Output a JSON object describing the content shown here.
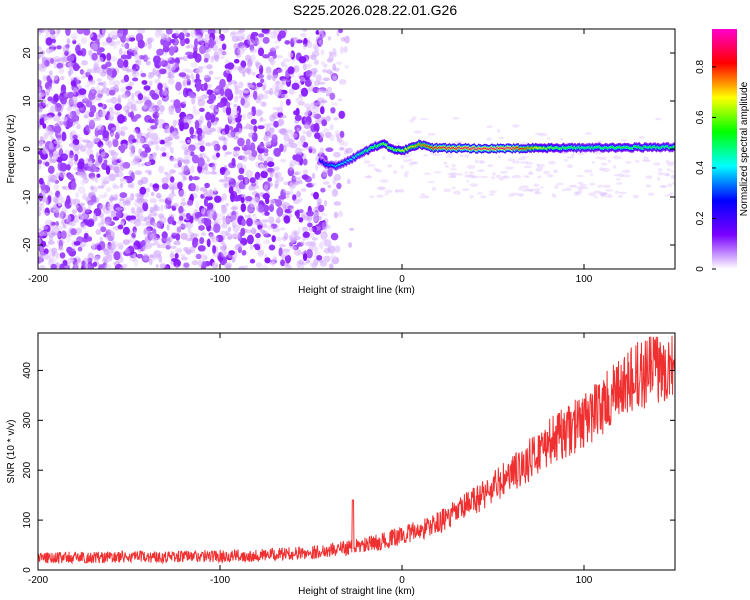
{
  "title": "S225.2026.028.22.01.G26",
  "chart_data": [
    {
      "type": "heatmap",
      "xlabel": "Height of straight line (km)",
      "ylabel": "Frequency (Hz)",
      "xlim": [
        -200,
        150
      ],
      "ylim": [
        -25,
        25
      ],
      "xticks": [
        -200,
        -100,
        0,
        100
      ],
      "yticks": [
        -20,
        -10,
        0,
        10,
        20
      ],
      "colorbar": {
        "label": "Normalized spectral amplitude",
        "range": [
          0,
          0.95
        ],
        "ticks": [
          0,
          0.2,
          0.4,
          0.6,
          0.8
        ],
        "colormap": [
          "#ffffff",
          "#7a00ff",
          "#0000ff",
          "#00ffff",
          "#00ff00",
          "#ffff00",
          "#ff0000",
          "#ff00cc"
        ]
      },
      "ridge": {
        "x": [
          -45,
          -40,
          -35,
          -30,
          -25,
          -20,
          -15,
          -10,
          -5,
          0,
          5,
          10,
          15,
          20,
          40,
          60,
          80,
          100,
          120,
          150
        ],
        "frequency": [
          -2.5,
          -3.5,
          -3.5,
          -2.5,
          -1.5,
          -0.5,
          0.5,
          1.0,
          0.0,
          -0.5,
          0.5,
          1.0,
          0.3,
          0.2,
          0.1,
          0.1,
          0.2,
          0.3,
          0.3,
          0.4
        ],
        "amplitude": [
          0.25,
          0.35,
          0.4,
          0.4,
          0.45,
          0.5,
          0.55,
          0.6,
          0.6,
          0.65,
          0.7,
          0.75,
          0.8,
          0.85,
          0.9,
          0.9,
          0.6,
          0.5,
          0.55,
          0.5
        ]
      }
    },
    {
      "type": "line",
      "xlabel": "Height of straight line (km)",
      "ylabel": "SNR (10 * v/v)",
      "xlim": [
        -200,
        150
      ],
      "ylim": [
        0,
        475
      ],
      "xticks": [
        -200,
        -100,
        0,
        100
      ],
      "yticks": [
        0,
        100,
        200,
        300,
        400
      ],
      "color": "#f03030",
      "series": [
        {
          "x": [
            -200,
            -175,
            -150,
            -125,
            -100,
            -75,
            -50,
            -40,
            -30,
            -20,
            -10,
            0,
            10,
            20,
            30,
            40,
            50,
            60,
            70,
            80,
            90,
            100,
            110,
            120,
            130,
            140,
            150
          ],
          "values": [
            25,
            25,
            26,
            27,
            28,
            30,
            35,
            40,
            45,
            50,
            58,
            70,
            80,
            95,
            115,
            140,
            165,
            190,
            220,
            255,
            275,
            300,
            330,
            360,
            390,
            405,
            415
          ]
        }
      ]
    }
  ]
}
